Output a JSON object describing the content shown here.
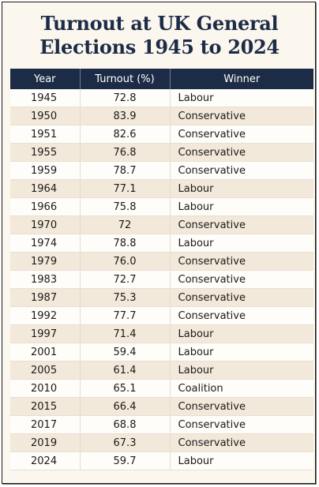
{
  "chart_data": {
    "type": "table",
    "title_lines": [
      "Turnout at UK General",
      "Elections 1945 to 2024"
    ],
    "columns": [
      "Year",
      "Turnout (%)",
      "Winner"
    ],
    "rows": [
      [
        "1945",
        "72.8",
        "Labour"
      ],
      [
        "1950",
        "83.9",
        "Conservative"
      ],
      [
        "1951",
        "82.6",
        "Conservative"
      ],
      [
        "1955",
        "76.8",
        "Conservative"
      ],
      [
        "1959",
        "78.7",
        "Conservative"
      ],
      [
        "1964",
        "77.1",
        "Labour"
      ],
      [
        "1966",
        "75.8",
        "Labour"
      ],
      [
        "1970",
        "72",
        "Conservative"
      ],
      [
        "1974",
        "78.8",
        "Labour"
      ],
      [
        "1979",
        "76.0",
        "Conservative"
      ],
      [
        "1983",
        "72.7",
        "Conservative"
      ],
      [
        "1987",
        "75.3",
        "Conservative"
      ],
      [
        "1992",
        "77.7",
        "Conservative"
      ],
      [
        "1997",
        "71.4",
        "Labour"
      ],
      [
        "2001",
        "59.4",
        "Labour"
      ],
      [
        "2005",
        "61.4",
        "Labour"
      ],
      [
        "2010",
        "65.1",
        "Coalition"
      ],
      [
        "2015",
        "66.4",
        "Conservative"
      ],
      [
        "2017",
        "68.8",
        "Conservative"
      ],
      [
        "2019",
        "67.3",
        "Conservative"
      ],
      [
        "2024",
        "59.7",
        "Labour"
      ]
    ]
  },
  "colors": {
    "header_bg": "#1c2c46",
    "title_text": "#1c2c46",
    "row_light": "#fffdf9",
    "row_dark": "#f3e9da",
    "frame_bg": "#fbf6ee"
  }
}
